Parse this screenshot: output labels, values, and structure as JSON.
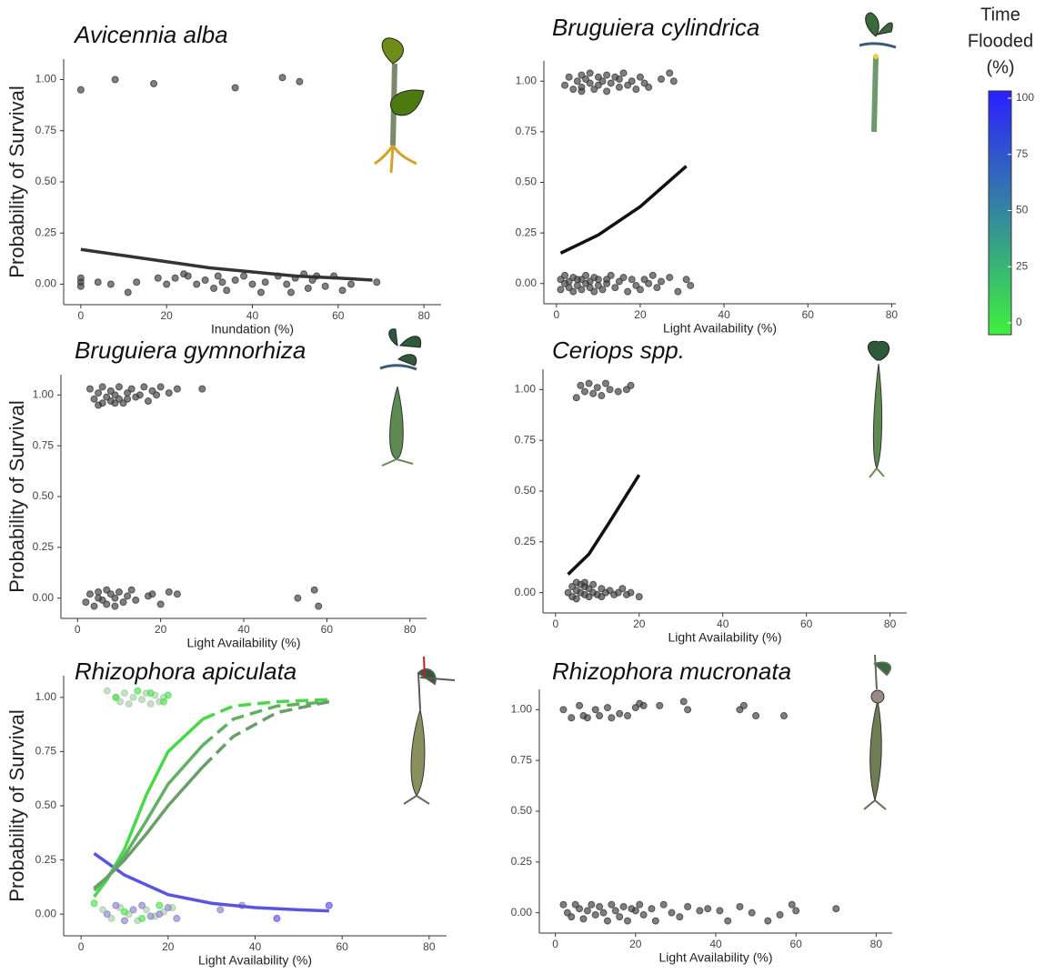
{
  "chart_data": [
    {
      "type": "scatter",
      "title": "Avicennia alba",
      "xlabel": "Inundation (%)",
      "ylabel": "Probability of Survival",
      "xlim": [
        -4,
        84
      ],
      "ylim": [
        -0.1,
        1.1
      ],
      "xticks": [
        0,
        20,
        40,
        60,
        80
      ],
      "yticks": [
        {
          "value": 0,
          "label": "0.00"
        },
        {
          "value": 0.25,
          "label": "0.25"
        },
        {
          "value": 0.5,
          "label": "0.50"
        },
        {
          "value": 0.75,
          "label": "0.75"
        },
        {
          "value": 1,
          "label": "1.00"
        }
      ],
      "series": [
        {
          "mode": "markers",
          "color": "#3a3a3a",
          "x": [
            0,
            8,
            17,
            36,
            47,
            51,
            0,
            0,
            0,
            4,
            7,
            11,
            13,
            18,
            20,
            22,
            24,
            25,
            27,
            29,
            31,
            32,
            33,
            34,
            36,
            38,
            40,
            42,
            43,
            46,
            48,
            49,
            50,
            52,
            53,
            54,
            55,
            57,
            59,
            61,
            63,
            69
          ],
          "values": [
            0.95,
            1.0,
            0.98,
            0.96,
            1.01,
            0.99,
            -0.01,
            0.03,
            0.01,
            0.01,
            0.0,
            -0.04,
            0.01,
            0.03,
            0.0,
            0.03,
            0.05,
            0.04,
            0.0,
            0.02,
            -0.02,
            0.04,
            0.01,
            -0.03,
            0.02,
            0.04,
            0.0,
            -0.04,
            0.01,
            0.04,
            0.0,
            -0.04,
            0.03,
            0.05,
            -0.02,
            0.02,
            0.04,
            -0.01,
            0.04,
            -0.03,
            0.0,
            0.01
          ]
        },
        {
          "mode": "lines",
          "color": "#333333",
          "x": [
            0,
            10,
            20,
            30,
            40,
            50,
            60,
            68
          ],
          "values": [
            0.17,
            0.14,
            0.11,
            0.08,
            0.06,
            0.04,
            0.03,
            0.02
          ]
        }
      ]
    },
    {
      "type": "scatter",
      "title": "Bruguiera cylindrica",
      "xlabel": "Light Availability (%)",
      "xlim": [
        -3,
        81
      ],
      "ylim": [
        -0.1,
        1.1
      ],
      "xticks": [
        0,
        20,
        40,
        60,
        80
      ],
      "yticks": [
        {
          "value": 0,
          "label": "0.00"
        },
        {
          "value": 0.25,
          "label": "0.25"
        },
        {
          "value": 0.5,
          "label": "0.50"
        },
        {
          "value": 0.75,
          "label": "0.75"
        },
        {
          "value": 1,
          "label": "1.00"
        }
      ],
      "series": [
        {
          "mode": "markers",
          "color": "#3a3a3a",
          "x": [
            2,
            3,
            4,
            5,
            6,
            6,
            7,
            8,
            8,
            9,
            10,
            10,
            11,
            12,
            12,
            13,
            14,
            15,
            15,
            16,
            17,
            18,
            19,
            20,
            21,
            22,
            25,
            27,
            28,
            6,
            1,
            1,
            2,
            2,
            3,
            3,
            4,
            4,
            5,
            5,
            6,
            6,
            7,
            7,
            8,
            8,
            9,
            9,
            10,
            10,
            11,
            12,
            12,
            13,
            14,
            15,
            16,
            17,
            18,
            19,
            20,
            21,
            22,
            23,
            24,
            25,
            27,
            29,
            31,
            32
          ],
          "values": [
            0.98,
            1.02,
            0.96,
            1.0,
            1.03,
            0.97,
            1.01,
            0.99,
            1.04,
            0.96,
            1.02,
            0.98,
            1.0,
            1.03,
            0.95,
            0.99,
            1.02,
            0.97,
            1.01,
            1.04,
            0.98,
            1.0,
            0.96,
            1.02,
            0.99,
            0.97,
            1.01,
            1.04,
            1.0,
            0.95,
            -0.03,
            0.02,
            0.0,
            0.04,
            -0.02,
            0.01,
            0.03,
            -0.04,
            0.02,
            -0.01,
            -0.03,
            0.02,
            0.0,
            0.04,
            -0.02,
            0.01,
            0.03,
            -0.04,
            0.02,
            -0.01,
            -0.03,
            0.02,
            0.0,
            0.04,
            -0.02,
            0.01,
            0.03,
            -0.04,
            0.02,
            -0.01,
            -0.03,
            0.02,
            0.0,
            0.04,
            -0.02,
            0.01,
            0.03,
            -0.04,
            0.02,
            -0.01
          ]
        },
        {
          "mode": "lines",
          "color": "#111111",
          "x": [
            1,
            10,
            20,
            31
          ],
          "values": [
            0.15,
            0.24,
            0.38,
            0.58
          ]
        }
      ]
    },
    {
      "type": "scatter",
      "title": "Bruguiera gymnorhiza",
      "xlabel": "Light Availability (%)",
      "ylabel": "Probability of Survival",
      "xlim": [
        -4,
        84
      ],
      "ylim": [
        -0.1,
        1.1
      ],
      "xticks": [
        0,
        20,
        40,
        60,
        80
      ],
      "yticks": [
        {
          "value": 0,
          "label": "0.00"
        },
        {
          "value": 0.25,
          "label": "0.25"
        },
        {
          "value": 0.5,
          "label": "0.50"
        },
        {
          "value": 0.75,
          "label": "0.75"
        },
        {
          "value": 1,
          "label": "1.00"
        }
      ],
      "series": [
        {
          "mode": "markers",
          "color": "#3a3a3a",
          "x": [
            3,
            4,
            5,
            6,
            6,
            7,
            8,
            8,
            9,
            10,
            10,
            11,
            12,
            13,
            14,
            15,
            16,
            17,
            18,
            19,
            20,
            22,
            24,
            30,
            5,
            9,
            12,
            2,
            3,
            4,
            5,
            5,
            6,
            7,
            7,
            8,
            9,
            9,
            10,
            11,
            12,
            13,
            14,
            17,
            18,
            20,
            22,
            24,
            53,
            57,
            58
          ],
          "values": [
            1.03,
            0.98,
            1.01,
            0.96,
            1.04,
            0.99,
            1.02,
            0.97,
            1.0,
            1.04,
            0.98,
            0.96,
            1.01,
            1.03,
            0.99,
            1.0,
            1.04,
            0.97,
            1.02,
            1.0,
            1.04,
            1.01,
            1.03,
            1.03,
            0.95,
            0.96,
            0.98,
            -0.02,
            0.02,
            -0.04,
            0.03,
            0.0,
            -0.01,
            0.04,
            -0.03,
            0.02,
            0.0,
            -0.04,
            0.03,
            -0.02,
            0.01,
            0.04,
            -0.01,
            0.01,
            0.02,
            -0.03,
            0.03,
            0.02,
            0.0,
            0.04,
            -0.04
          ]
        }
      ]
    },
    {
      "type": "scatter",
      "title": "Ceriops spp.",
      "xlabel": "Light Availability (%)",
      "xlim": [
        -3,
        84
      ],
      "ylim": [
        -0.1,
        1.1
      ],
      "xticks": [
        0,
        20,
        40,
        60,
        80
      ],
      "yticks": [
        {
          "value": 0,
          "label": "0.00"
        },
        {
          "value": 0.25,
          "label": "0.25"
        },
        {
          "value": 0.5,
          "label": "0.50"
        },
        {
          "value": 0.75,
          "label": "0.75"
        },
        {
          "value": 1,
          "label": "1.00"
        }
      ],
      "series": [
        {
          "mode": "markers",
          "color": "#3a3a3a",
          "x": [
            5,
            6,
            7,
            8,
            9,
            10,
            11,
            12,
            13,
            15,
            17,
            18,
            3,
            4,
            4,
            5,
            5,
            6,
            6,
            7,
            7,
            8,
            8,
            9,
            9,
            10,
            11,
            11,
            12,
            13,
            14,
            15,
            16,
            17,
            18,
            20,
            5,
            7
          ],
          "values": [
            0.96,
            1.02,
            0.99,
            1.03,
            0.98,
            1.01,
            0.97,
            1.03,
            1.0,
            0.99,
            1.0,
            1.02,
            0.0,
            -0.02,
            0.03,
            0.01,
            -0.03,
            0.04,
            0.0,
            -0.01,
            0.03,
            0.02,
            -0.02,
            0.04,
            0.0,
            -0.01,
            0.02,
            -0.02,
            0.0,
            0.01,
            -0.01,
            0.0,
            0.02,
            -0.01,
            0.0,
            -0.02,
            0.05,
            0.05
          ]
        },
        {
          "mode": "lines",
          "color": "#111111",
          "x": [
            3,
            8,
            13,
            20
          ],
          "values": [
            0.09,
            0.19,
            0.35,
            0.58
          ]
        }
      ]
    },
    {
      "type": "scatter",
      "title": "Rhizophora apiculata",
      "xlabel": "Light Availability (%)",
      "ylabel": "Probability of Survival",
      "xlim": [
        -4,
        84
      ],
      "ylim": [
        -0.1,
        1.1
      ],
      "xticks": [
        0,
        20,
        40,
        60,
        80
      ],
      "yticks": [
        {
          "value": 0,
          "label": "0.00"
        },
        {
          "value": 0.25,
          "label": "0.25"
        },
        {
          "value": 0.5,
          "label": "0.50"
        },
        {
          "value": 0.75,
          "label": "0.75"
        },
        {
          "value": 1,
          "label": "1.00"
        }
      ],
      "series": [
        {
          "mode": "markers",
          "color": "#a8cca8",
          "x": [
            6,
            8,
            9,
            10,
            11,
            12,
            14,
            15,
            16,
            17,
            18,
            19,
            5,
            7,
            9,
            11,
            13,
            15,
            17,
            19,
            21
          ],
          "values": [
            1.03,
            1.0,
            0.98,
            1.02,
            0.97,
            1.0,
            0.99,
            1.02,
            0.97,
            1.01,
            0.98,
            1.0,
            0.02,
            -0.02,
            0.03,
            0.0,
            -0.03,
            0.02,
            -0.01,
            0.01,
            0.03
          ]
        },
        {
          "mode": "markers",
          "color": "#4de04d",
          "x": [
            8,
            13,
            16,
            19,
            20,
            3,
            10,
            14,
            18
          ],
          "values": [
            1.0,
            1.03,
            1.02,
            0.98,
            1.01,
            0.05,
            0.01,
            -0.02,
            0.04
          ]
        },
        {
          "mode": "markers",
          "color": "#8585c8",
          "x": [
            6,
            8,
            10,
            12,
            14,
            16,
            18,
            20,
            22,
            32,
            37
          ],
          "values": [
            0.0,
            0.04,
            -0.03,
            0.02,
            0.04,
            -0.01,
            0.0,
            0.03,
            -0.02,
            0.02,
            0.04
          ]
        },
        {
          "mode": "markers",
          "color": "#5a55e8",
          "x": [
            45,
            57
          ],
          "values": [
            -0.02,
            0.04
          ]
        },
        {
          "mode": "lines",
          "color": "#5a55e0",
          "x": [
            3,
            10,
            20,
            30,
            40,
            50,
            57
          ],
          "values": [
            0.28,
            0.18,
            0.09,
            0.05,
            0.03,
            0.02,
            0.015
          ]
        },
        {
          "mode": "lines",
          "color": "#4ad84a",
          "x": [
            3,
            6,
            10,
            15,
            20,
            28
          ],
          "values": [
            0.08,
            0.16,
            0.3,
            0.55,
            0.75,
            0.9
          ]
        },
        {
          "mode": "lines",
          "color": "#4ad84a",
          "dash": true,
          "x": [
            28,
            35,
            45,
            57
          ],
          "values": [
            0.9,
            0.96,
            0.98,
            0.99
          ]
        },
        {
          "mode": "lines",
          "color": "#62b062",
          "x": [
            3,
            6,
            10,
            15,
            20,
            28
          ],
          "values": [
            0.11,
            0.17,
            0.27,
            0.43,
            0.6,
            0.78
          ]
        },
        {
          "mode": "lines",
          "color": "#62b062",
          "dash": true,
          "x": [
            28,
            35,
            45,
            57
          ],
          "values": [
            0.78,
            0.9,
            0.96,
            0.98
          ]
        },
        {
          "mode": "lines",
          "color": "#6a9e6a",
          "x": [
            3,
            6,
            10,
            15,
            20,
            28
          ],
          "values": [
            0.12,
            0.17,
            0.25,
            0.37,
            0.5,
            0.68
          ]
        },
        {
          "mode": "lines",
          "color": "#6a9e6a",
          "dash": true,
          "x": [
            28,
            35,
            45,
            57
          ],
          "values": [
            0.68,
            0.82,
            0.93,
            0.98
          ]
        }
      ]
    },
    {
      "type": "scatter",
      "title": "Rhizophora mucronata",
      "xlabel": "Light Availability (%)",
      "xlim": [
        -4,
        84
      ],
      "ylim": [
        -0.1,
        1.1
      ],
      "xticks": [
        0,
        20,
        40,
        60,
        80
      ],
      "yticks": [
        {
          "value": 0,
          "label": "0.00"
        },
        {
          "value": 0.25,
          "label": "0.25"
        },
        {
          "value": 0.5,
          "label": "0.50"
        },
        {
          "value": 0.75,
          "label": "0.75"
        },
        {
          "value": 1,
          "label": "1.00"
        }
      ],
      "series": [
        {
          "mode": "markers",
          "color": "#3a3a3a",
          "x": [
            2,
            4,
            6,
            7,
            8,
            10,
            11,
            13,
            14,
            16,
            18,
            20,
            21,
            22,
            26,
            32,
            33,
            46,
            47,
            50,
            57,
            2,
            3,
            4,
            5,
            6,
            7,
            8,
            9,
            10,
            11,
            12,
            13,
            14,
            15,
            16,
            17,
            18,
            19,
            20,
            21,
            22,
            24,
            25,
            27,
            29,
            31,
            33,
            36,
            38,
            41,
            43,
            46,
            49,
            53,
            56,
            59,
            60,
            70
          ],
          "values": [
            1.0,
            0.96,
            1.02,
            0.97,
            0.96,
            1.0,
            0.97,
            1.01,
            0.96,
            0.98,
            0.97,
            1.01,
            1.03,
            1.02,
            1.02,
            1.04,
            1.0,
            1.0,
            1.02,
            0.97,
            0.97,
            0.04,
            0.0,
            -0.02,
            0.04,
            0.02,
            -0.03,
            0.01,
            0.04,
            -0.01,
            0.03,
            0.0,
            -0.04,
            0.04,
            0.01,
            -0.02,
            0.03,
            -0.04,
            0.02,
            0.01,
            0.04,
            -0.01,
            0.02,
            -0.04,
            0.04,
            0.0,
            -0.02,
            0.03,
            0.01,
            0.02,
            0.01,
            -0.04,
            0.03,
            0.0,
            -0.04,
            -0.01,
            0.04,
            0.01,
            0.02
          ]
        }
      ]
    }
  ],
  "colorbar": {
    "title": [
      "Time",
      "Flooded",
      "(%)"
    ],
    "lim": [
      0,
      100
    ],
    "ticks": [
      0,
      25,
      50,
      75,
      100
    ],
    "colors": [
      "#3ef03e",
      "#2b1fff"
    ]
  }
}
